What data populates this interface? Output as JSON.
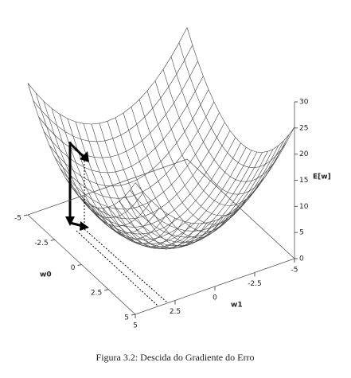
{
  "chart_data": {
    "type": "surface",
    "xlabel": "w0",
    "ylabel": "w1",
    "zlabel": "E[w]",
    "xlim": [
      -5,
      5
    ],
    "xticks": [
      -5,
      -2.5,
      0,
      2.5,
      5
    ],
    "ylim": [
      -5,
      5
    ],
    "yticks": [
      -5,
      -2.5,
      0,
      2.5,
      5
    ],
    "zlim": [
      0,
      30
    ],
    "zticks": [
      0,
      5,
      10,
      15,
      20,
      25,
      30
    ]
  },
  "caption": "Figura 3.2: Descida do Gradiente do Erro"
}
